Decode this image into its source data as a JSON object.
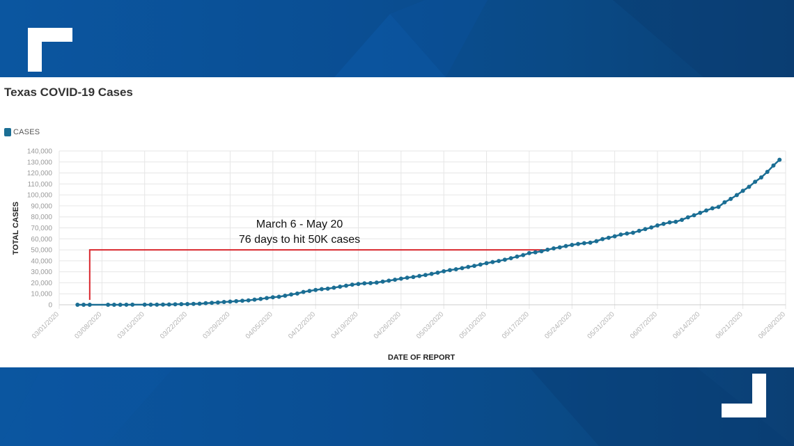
{
  "colors": {
    "band": "#0a4e93",
    "series": "#1b6e94",
    "annotation_line": "#d9272e",
    "grid": "#e6e6e6"
  },
  "chart_data": {
    "type": "line",
    "title": "Texas COVID-19 Cases",
    "legend": [
      "CASES"
    ],
    "legend_position": "top-left",
    "xlabel": "DATE OF REPORT",
    "ylabel": "TOTAL CASES",
    "ylim": [
      0,
      140000
    ],
    "grid": true,
    "y_ticks": [
      "0",
      "10,000",
      "20,000",
      "30,000",
      "40,000",
      "50,000",
      "60,000",
      "70,000",
      "80,000",
      "90,000",
      "100,000",
      "110,000",
      "120,000",
      "130,000",
      "140,000"
    ],
    "x_ticks": [
      "03/01/2020",
      "03/08/2020",
      "03/15/2020",
      "03/22/2020",
      "03/29/2020",
      "04/05/2020",
      "04/12/2020",
      "04/19/2020",
      "04/26/2020",
      "05/03/2020",
      "05/10/2020",
      "05/17/2020",
      "05/24/2020",
      "05/31/2020",
      "06/07/2020",
      "06/14/2020",
      "06/21/2020",
      "06/28/2020"
    ],
    "x_first_date": "03/01/2020",
    "x_last_date": "06/28/2020",
    "series": [
      {
        "name": "CASES",
        "points": [
          [
            "03/04/2020",
            0
          ],
          [
            "03/05/2020",
            0
          ],
          [
            "03/06/2020",
            1
          ],
          [
            "03/09/2020",
            12
          ],
          [
            "03/10/2020",
            13
          ],
          [
            "03/11/2020",
            21
          ],
          [
            "03/12/2020",
            39
          ],
          [
            "03/13/2020",
            56
          ],
          [
            "03/15/2020",
            72
          ],
          [
            "03/16/2020",
            85
          ],
          [
            "03/17/2020",
            110
          ],
          [
            "03/18/2020",
            173
          ],
          [
            "03/19/2020",
            260
          ],
          [
            "03/20/2020",
            394
          ],
          [
            "03/21/2020",
            566
          ],
          [
            "03/22/2020",
            627
          ],
          [
            "03/23/2020",
            758
          ],
          [
            "03/24/2020",
            974
          ],
          [
            "03/25/2020",
            1396
          ],
          [
            "03/26/2020",
            1731
          ],
          [
            "03/27/2020",
            2052
          ],
          [
            "03/28/2020",
            2552
          ],
          [
            "03/29/2020",
            2877
          ],
          [
            "03/30/2020",
            3266
          ],
          [
            "03/31/2020",
            3666
          ],
          [
            "04/01/2020",
            3997
          ],
          [
            "04/02/2020",
            4669
          ],
          [
            "04/03/2020",
            5330
          ],
          [
            "04/04/2020",
            6110
          ],
          [
            "04/05/2020",
            6812
          ],
          [
            "04/06/2020",
            7276
          ],
          [
            "04/07/2020",
            8262
          ],
          [
            "04/08/2020",
            9353
          ],
          [
            "04/09/2020",
            10230
          ],
          [
            "04/10/2020",
            11671
          ],
          [
            "04/11/2020",
            12561
          ],
          [
            "04/12/2020",
            13484
          ],
          [
            "04/13/2020",
            14275
          ],
          [
            "04/14/2020",
            14624
          ],
          [
            "04/15/2020",
            15492
          ],
          [
            "04/16/2020",
            16455
          ],
          [
            "04/17/2020",
            17371
          ],
          [
            "04/18/2020",
            18260
          ],
          [
            "04/19/2020",
            18923
          ],
          [
            "04/20/2020",
            19458
          ],
          [
            "04/21/2020",
            19751
          ],
          [
            "04/22/2020",
            20196
          ],
          [
            "04/23/2020",
            21069
          ],
          [
            "04/24/2020",
            21944
          ],
          [
            "04/25/2020",
            22806
          ],
          [
            "04/26/2020",
            23773
          ],
          [
            "04/27/2020",
            24631
          ],
          [
            "04/28/2020",
            25297
          ],
          [
            "04/29/2020",
            26171
          ],
          [
            "04/30/2020",
            27054
          ],
          [
            "05/01/2020",
            28087
          ],
          [
            "05/02/2020",
            29229
          ],
          [
            "05/03/2020",
            30522
          ],
          [
            "05/04/2020",
            31548
          ],
          [
            "05/05/2020",
            32332
          ],
          [
            "05/06/2020",
            33369
          ],
          [
            "05/07/2020",
            34422
          ],
          [
            "05/08/2020",
            35390
          ],
          [
            "05/09/2020",
            36609
          ],
          [
            "05/10/2020",
            37860
          ],
          [
            "05/11/2020",
            38869
          ],
          [
            "05/12/2020",
            39869
          ],
          [
            "05/13/2020",
            41048
          ],
          [
            "05/14/2020",
            42403
          ],
          [
            "05/15/2020",
            43851
          ],
          [
            "05/16/2020",
            45198
          ],
          [
            "05/17/2020",
            46999
          ],
          [
            "05/18/2020",
            47784
          ],
          [
            "05/19/2020",
            48693
          ],
          [
            "05/20/2020",
            50117
          ],
          [
            "05/21/2020",
            51323
          ],
          [
            "05/22/2020",
            52268
          ],
          [
            "05/23/2020",
            53449
          ],
          [
            "05/24/2020",
            54509
          ],
          [
            "05/25/2020",
            55348
          ],
          [
            "05/26/2020",
            56093
          ],
          [
            "05/27/2020",
            56560
          ],
          [
            "05/28/2020",
            57921
          ],
          [
            "05/29/2020",
            59776
          ],
          [
            "05/30/2020",
            61006
          ],
          [
            "05/31/2020",
            62338
          ],
          [
            "06/01/2020",
            63870
          ],
          [
            "06/02/2020",
            64880
          ],
          [
            "06/03/2020",
            65593
          ],
          [
            "06/04/2020",
            67300
          ],
          [
            "06/05/2020",
            68890
          ],
          [
            "06/06/2020",
            70374
          ],
          [
            "06/07/2020",
            72192
          ],
          [
            "06/08/2020",
            73624
          ],
          [
            "06/09/2020",
            74981
          ],
          [
            "06/10/2020",
            75535
          ],
          [
            "06/11/2020",
            77311
          ],
          [
            "06/12/2020",
            79599
          ],
          [
            "06/13/2020",
            81476
          ],
          [
            "06/14/2020",
            83680
          ],
          [
            "06/15/2020",
            85840
          ],
          [
            "06/16/2020",
            87790
          ],
          [
            "06/17/2020",
            89096
          ],
          [
            "06/18/2020",
            93305
          ],
          [
            "06/19/2020",
            96339
          ],
          [
            "06/20/2020",
            99855
          ],
          [
            "06/21/2020",
            103770
          ],
          [
            "06/22/2020",
            107400
          ],
          [
            "06/23/2020",
            112000
          ],
          [
            "06/24/2020",
            115900
          ],
          [
            "06/25/2020",
            121000
          ],
          [
            "06/26/2020",
            126800
          ],
          [
            "06/27/2020",
            132000
          ]
        ]
      }
    ],
    "annotation": {
      "lines": [
        "March 6 - May 20",
        "76 days to hit 50K cases"
      ],
      "start_date": "03/06/2020",
      "end_date": "05/20/2020",
      "value": 50000
    }
  }
}
